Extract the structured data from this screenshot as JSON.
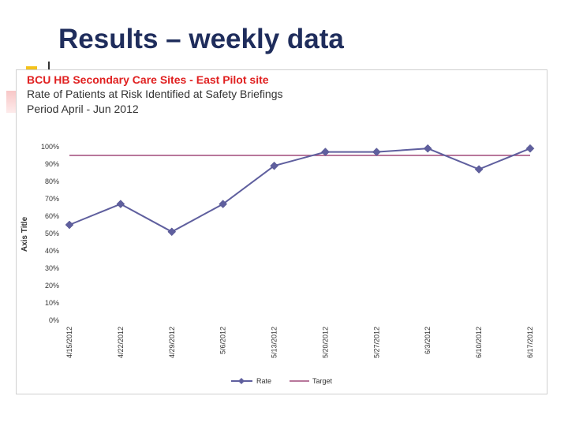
{
  "slide": {
    "title": "Results – weekly data"
  },
  "chart_data": {
    "type": "line",
    "header": {
      "line1": "BCU HB  Secondary Care Sites - East  Pilot site",
      "line2": "Rate of Patients at Risk Identified at Safety Briefings",
      "line3": "Period April - Jun 2012"
    },
    "categories": [
      "4/15/2012",
      "4/22/2012",
      "4/29/2012",
      "5/6/2012",
      "5/13/2012",
      "5/20/2012",
      "5/27/2012",
      "6/3/2012",
      "6/10/2012",
      "6/17/2012"
    ],
    "series": [
      {
        "name": "Rate",
        "values": [
          55,
          67,
          51,
          67,
          89,
          97,
          97,
          99,
          87,
          99
        ],
        "color": "#5f5f9e"
      },
      {
        "name": "Target",
        "values": [
          95,
          95,
          95,
          95,
          95,
          95,
          95,
          95,
          95,
          95
        ],
        "color": "#a14a7a"
      }
    ],
    "yticks": [
      "0%",
      "10%",
      "20%",
      "30%",
      "40%",
      "50%",
      "60%",
      "70%",
      "80%",
      "90%",
      "100%"
    ],
    "ylim": [
      0,
      100
    ],
    "ylabel": "Axis Title",
    "xlabel": "",
    "legend": [
      "Rate",
      "Target"
    ]
  }
}
